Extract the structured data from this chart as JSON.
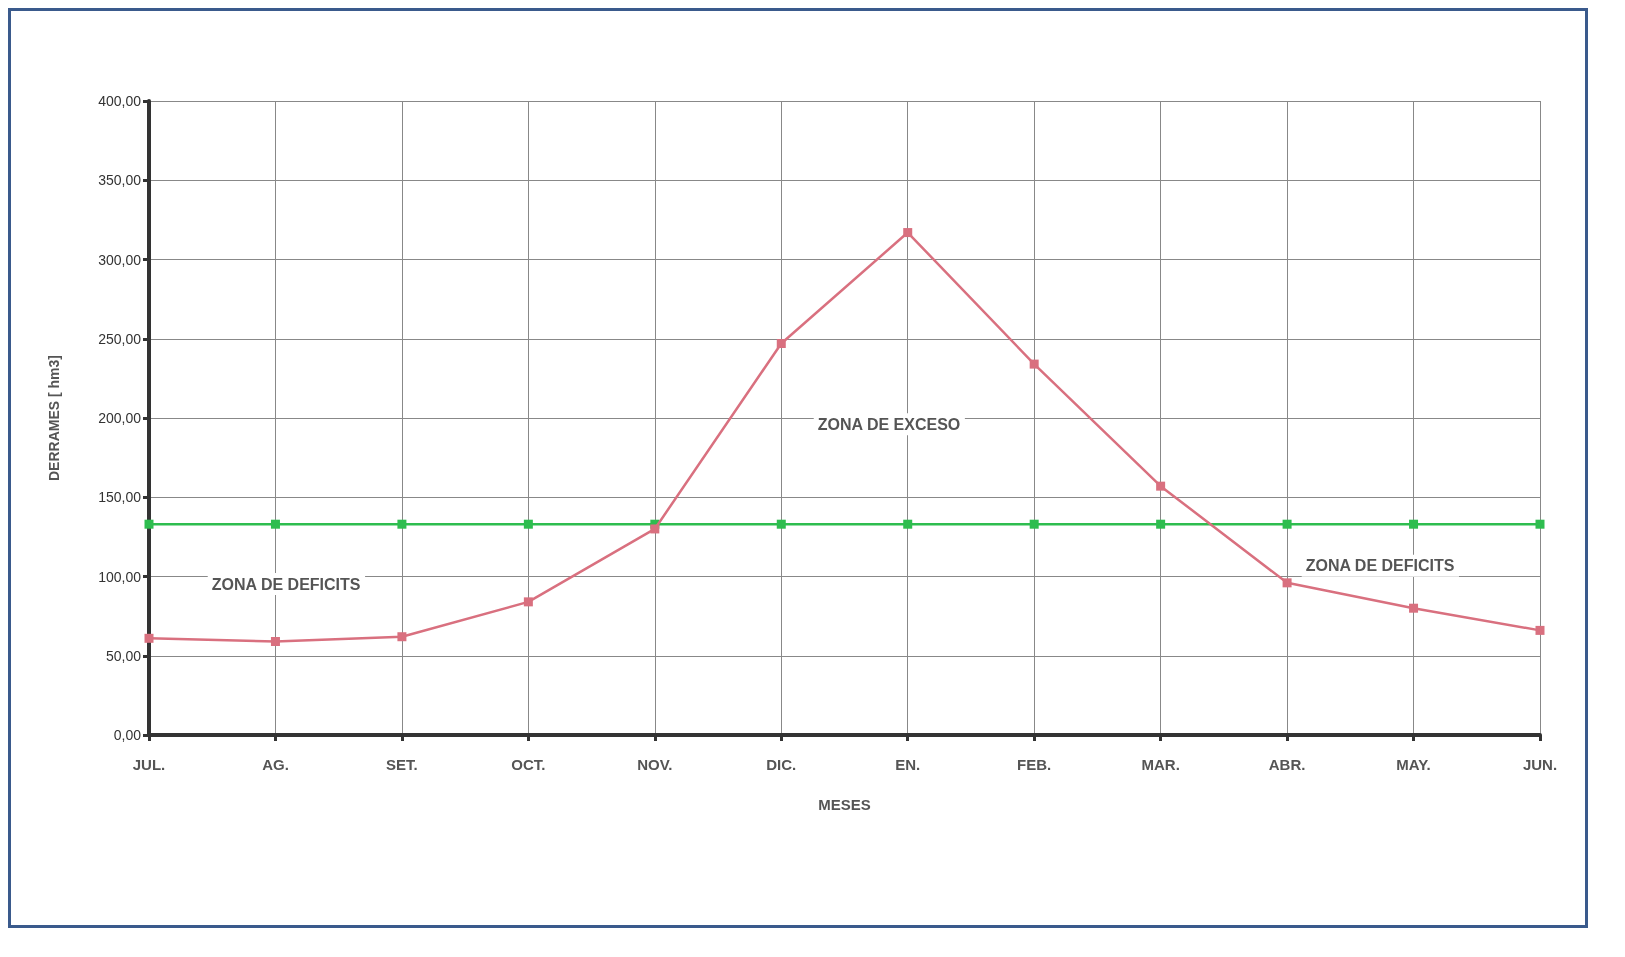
{
  "chart_data": {
    "type": "line",
    "xlabel": "MESES",
    "ylabel": "DERRAMES [ hm3]",
    "categories": [
      "JUL.",
      "AG.",
      "SET.",
      "OCT.",
      "NOV.",
      "DIC.",
      "EN.",
      "FEB.",
      "MAR.",
      "ABR.",
      "MAY.",
      "JUN."
    ],
    "series": [
      {
        "color": "#d9707f",
        "values": [
          61,
          59,
          62,
          84,
          130,
          247,
          317,
          234,
          157,
          96,
          80,
          66
        ]
      },
      {
        "color": "#2ebd4f",
        "values": [
          133,
          133,
          133,
          133,
          133,
          133,
          133,
          133,
          133,
          133,
          133,
          133
        ]
      }
    ],
    "ylim": [
      0,
      400
    ],
    "yticks": [
      {
        "value": 0,
        "label": "0,00"
      },
      {
        "value": 50,
        "label": "50,00"
      },
      {
        "value": 100,
        "label": "100,00"
      },
      {
        "value": 150,
        "label": "150,00"
      },
      {
        "value": 200,
        "label": "200,00"
      },
      {
        "value": 250,
        "label": "250,00"
      },
      {
        "value": 300,
        "label": "300,00"
      },
      {
        "value": 350,
        "label": "350,00"
      },
      {
        "value": 400,
        "label": "400,00"
      }
    ],
    "grid": true,
    "marker": "square",
    "line_style": "solid",
    "annotations": [
      "ZONA DE DEFICITS",
      "ZONA DE EXCESO",
      "ZONA DE DEFICITS"
    ]
  }
}
